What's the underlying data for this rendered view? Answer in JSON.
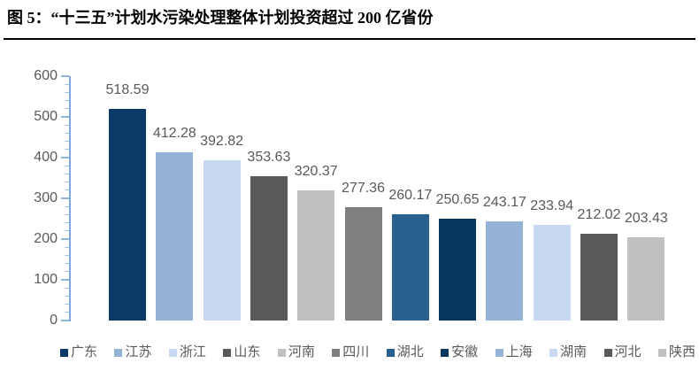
{
  "figure": {
    "title": "图 5：“十三五”计划水污染处理整体计划投资超过 200 亿省份"
  },
  "chart_data": {
    "type": "bar",
    "title": "图 5：“十三五”计划水污染处理整体计划投资超过 200 亿省份",
    "categories": [
      "广东",
      "江苏",
      "浙江",
      "山东",
      "河南",
      "四川",
      "湖北",
      "安徽",
      "上海",
      "湖南",
      "河北",
      "陕西"
    ],
    "values": [
      518.59,
      412.28,
      392.82,
      353.63,
      320.37,
      277.36,
      260.17,
      250.65,
      243.17,
      233.94,
      212.02,
      203.43
    ],
    "bar_colors": [
      "#0C3A66",
      "#95B3D7",
      "#C6D9F1",
      "#595959",
      "#C0C0C0",
      "#808080",
      "#28618F",
      "#06375F",
      "#95B3D7",
      "#C6D9F1",
      "#595959",
      "#C0C0C0"
    ],
    "xlabel": "",
    "ylabel": "",
    "ylim": [
      0,
      600
    ],
    "y_ticks": [
      0,
      100,
      200,
      300,
      400,
      500,
      600
    ],
    "minor_tick_interval": 20,
    "grid": "off",
    "legend_position": "bottom",
    "value_label_decimals": 2,
    "colors": {
      "axis_line": "#7FA8D9",
      "tick_major": "#8FB5E1",
      "tick_minor": "#A5C6EA",
      "tick_label": "#595959",
      "value_label": "#595959",
      "legend_text": "#595959",
      "title_text": "#000000",
      "title_rule": "#000000",
      "background": "#FFFFFF"
    }
  }
}
